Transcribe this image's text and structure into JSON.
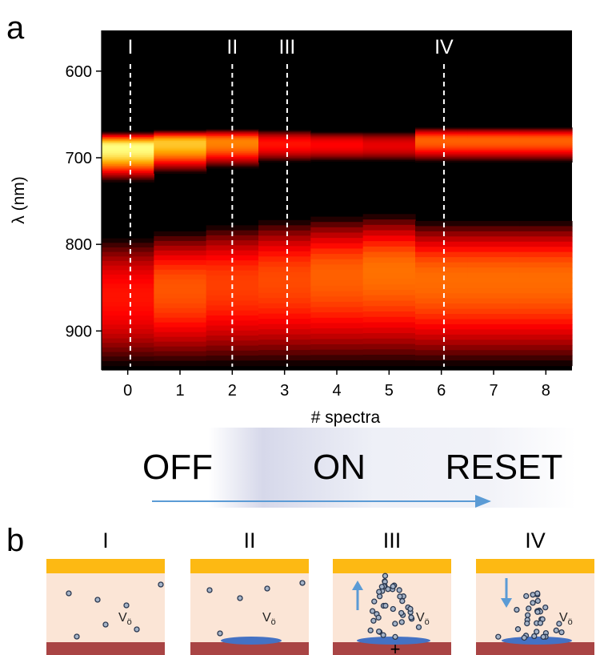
{
  "panel_a": {
    "label": "a",
    "chart_data": {
      "type": "heatmap",
      "xlabel": "# spectra",
      "ylabel": "λ (nm)",
      "x_ticks": [
        0,
        1,
        2,
        3,
        4,
        5,
        6,
        7,
        8
      ],
      "y_ticks": [
        600,
        700,
        800,
        900
      ],
      "xlim": [
        -0.5,
        8.5
      ],
      "ylim": [
        945,
        553
      ],
      "colormap": "black-red-yellow",
      "background": "#000000",
      "grid": false,
      "spectra": [
        {
          "x": 0,
          "bands": [
            {
              "from": 670,
              "to": 728,
              "center": 688,
              "intensity": 1.0
            },
            {
              "from": 793,
              "to": 940,
              "center": 860,
              "intensity": 0.58
            }
          ]
        },
        {
          "x": 1,
          "bands": [
            {
              "from": 668,
              "to": 718,
              "center": 683,
              "intensity": 0.9
            },
            {
              "from": 785,
              "to": 940,
              "center": 850,
              "intensity": 0.7
            }
          ]
        },
        {
          "x": 2,
          "bands": [
            {
              "from": 667,
              "to": 712,
              "center": 682,
              "intensity": 0.78
            },
            {
              "from": 778,
              "to": 940,
              "center": 845,
              "intensity": 0.66
            }
          ]
        },
        {
          "x": 3,
          "bands": [
            {
              "from": 668,
              "to": 705,
              "center": 684,
              "intensity": 0.58
            },
            {
              "from": 772,
              "to": 940,
              "center": 840,
              "intensity": 0.68
            }
          ]
        },
        {
          "x": 4,
          "bands": [
            {
              "from": 670,
              "to": 704,
              "center": 685,
              "intensity": 0.55
            },
            {
              "from": 768,
              "to": 940,
              "center": 835,
              "intensity": 0.72
            }
          ]
        },
        {
          "x": 5,
          "bands": [
            {
              "from": 670,
              "to": 704,
              "center": 686,
              "intensity": 0.5
            },
            {
              "from": 765,
              "to": 940,
              "center": 830,
              "intensity": 0.75
            }
          ]
        },
        {
          "x": 6,
          "bands": [
            {
              "from": 665,
              "to": 705,
              "center": 680,
              "intensity": 0.72
            },
            {
              "from": 773,
              "to": 940,
              "center": 840,
              "intensity": 0.74
            }
          ]
        },
        {
          "x": 7,
          "bands": [
            {
              "from": 665,
              "to": 705,
              "center": 680,
              "intensity": 0.72
            },
            {
              "from": 773,
              "to": 940,
              "center": 840,
              "intensity": 0.74
            }
          ]
        },
        {
          "x": 8,
          "bands": [
            {
              "from": 665,
              "to": 705,
              "center": 680,
              "intensity": 0.72
            },
            {
              "from": 773,
              "to": 940,
              "center": 840,
              "intensity": 0.74
            }
          ]
        }
      ],
      "annotations": [
        {
          "label": "I",
          "x": 0.05
        },
        {
          "label": "II",
          "x": 2.0
        },
        {
          "label": "III",
          "x": 3.05
        },
        {
          "label": "IV",
          "x": 6.05
        }
      ]
    }
  },
  "states": {
    "labels": [
      "OFF",
      "ON",
      "RESET"
    ],
    "arrow_color": "#5b9bd5"
  },
  "panel_b": {
    "label": "b",
    "cells": [
      {
        "title": "I",
        "label": "V",
        "sub": "ö",
        "filament_level": 0,
        "arrow": "none"
      },
      {
        "title": "II",
        "label": "V",
        "sub": "ö",
        "filament_level": 1,
        "arrow": "none"
      },
      {
        "title": "III",
        "label": "V",
        "sub": "ö",
        "filament_level": 3,
        "arrow": "up",
        "bottom_symbol": "+"
      },
      {
        "title": "IV",
        "label": "V",
        "sub": "ö",
        "filament_level": 2,
        "arrow": "down"
      }
    ],
    "colors": {
      "top_electrode": "#fdb913",
      "oxide": "#fbe5d6",
      "bottom_electrode": "#a94444",
      "filament": "#4472c4",
      "vacancy_fill": "#a6b4c8",
      "vacancy_stroke": "#2a3850",
      "arrow": "#5b9bd5"
    }
  }
}
